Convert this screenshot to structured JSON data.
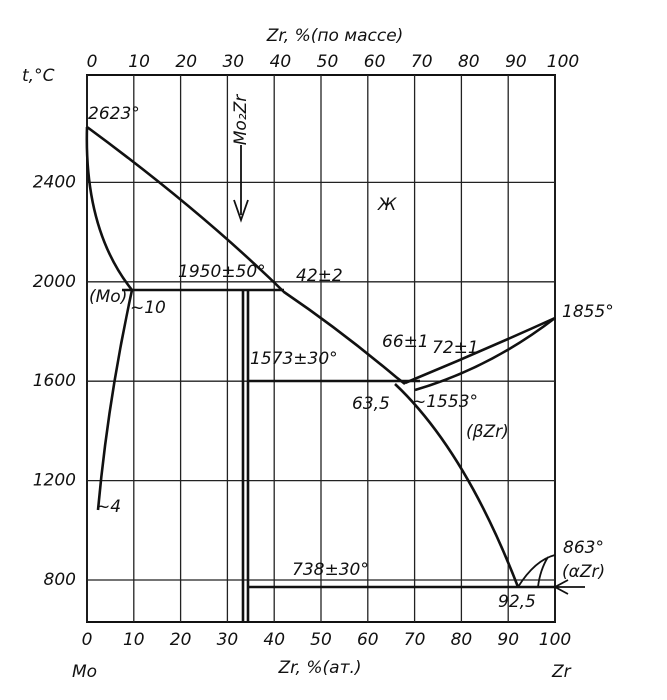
{
  "header": {
    "top_axis_label": "Zr, %(по массе)",
    "bottom_axis_label": "Zr, %(ат.)",
    "y_axis_label": "t,°C",
    "left_element": "Mo",
    "right_element": "Zr"
  },
  "axes": {
    "top_ticks": [
      0,
      10,
      20,
      30,
      40,
      50,
      60,
      70,
      80,
      90,
      100
    ],
    "bottom_ticks": [
      0,
      10,
      20,
      30,
      40,
      50,
      60,
      70,
      80,
      90,
      100
    ],
    "y_ticks": [
      2400,
      2000,
      1600,
      1200,
      800
    ]
  },
  "annotations": {
    "mo_melting": "2623°",
    "zr_melting": "1855°",
    "liquid": "Ж",
    "compound": "Mo₂Zr",
    "peritectic_t": "1950±50°",
    "peritectic_c": "42±2",
    "mo_phase": "(Mo)",
    "mo_solubility": "~10",
    "mo_low": "~4",
    "compound_t": "1573±30°",
    "eutectic_l": "66±1",
    "eutectic_b": "72±1",
    "eutectic_c": "63,5",
    "eutectic_t": "~1553°",
    "beta_zr": "(βZr)",
    "eutectoid_t": "738±30°",
    "eutectoid_c": "92,5",
    "alpha_t": "863°",
    "alpha_zr": "(αZr)"
  }
}
